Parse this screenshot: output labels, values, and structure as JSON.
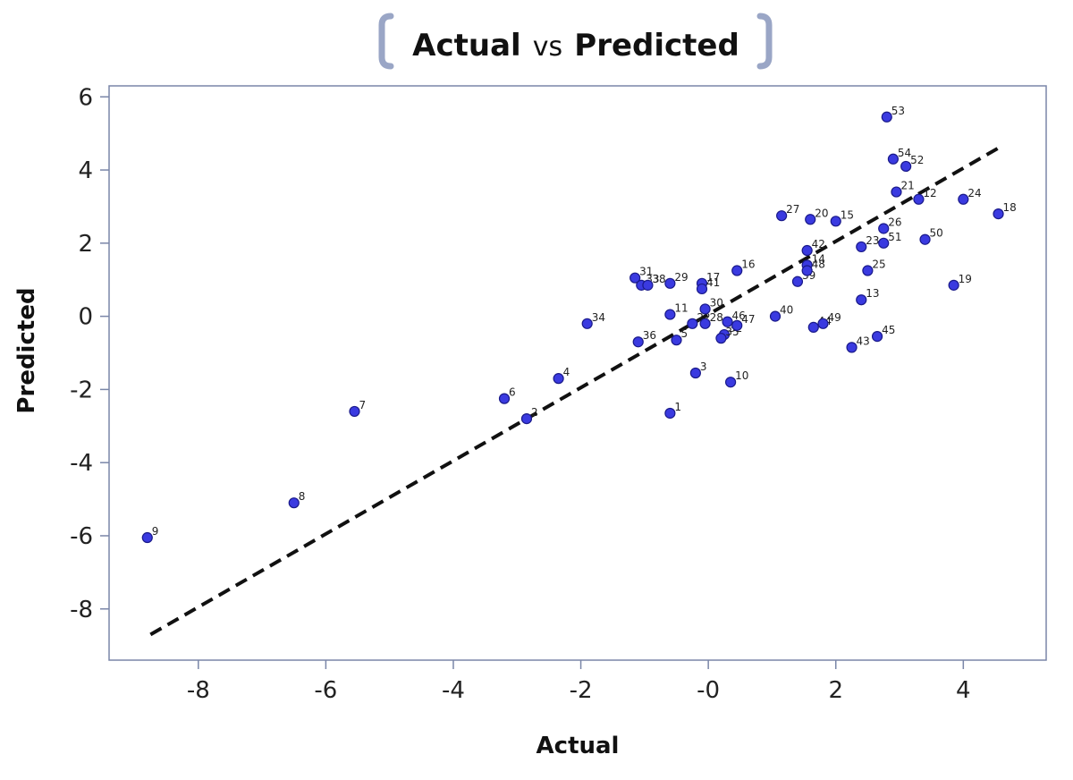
{
  "title": {
    "part1": "Actual",
    "part2": "vs",
    "part3": "Predicted",
    "bracket_color": "#9aa6c6"
  },
  "chart_data": {
    "type": "scatter",
    "xlabel": "Actual",
    "ylabel": "Predicted",
    "xlim": [
      -9.4,
      5.3
    ],
    "ylim": [
      -9.4,
      6.3
    ],
    "xticks": [
      -8,
      -6,
      -4,
      -2,
      0,
      2,
      4
    ],
    "xtick_labels": [
      "-8",
      "-6",
      "-4",
      "-2",
      "-0",
      "2",
      "4"
    ],
    "yticks": [
      -8,
      -6,
      -4,
      -2,
      0,
      2,
      4,
      6
    ],
    "ytick_labels": [
      "-8",
      "-6",
      "-4",
      "-2",
      "0",
      "2",
      "4",
      "6"
    ],
    "grid": false,
    "point_color": "#3a3ae0",
    "frame_color": "#7a86a8",
    "fit_line": {
      "x": [
        -8.75,
        4.55
      ],
      "y": [
        -8.7,
        4.6
      ],
      "style": "dashed",
      "color": "#111111"
    },
    "points": [
      {
        "label": "1",
        "x": -0.6,
        "y": -2.65
      },
      {
        "label": "2",
        "x": -2.85,
        "y": -2.8
      },
      {
        "label": "3",
        "x": -0.2,
        "y": -1.55
      },
      {
        "label": "4",
        "x": -2.35,
        "y": -1.7
      },
      {
        "label": "5",
        "x": -0.5,
        "y": -0.65
      },
      {
        "label": "6",
        "x": -3.2,
        "y": -2.25
      },
      {
        "label": "7",
        "x": -5.55,
        "y": -2.6
      },
      {
        "label": "8",
        "x": -6.5,
        "y": -5.1
      },
      {
        "label": "9",
        "x": -8.8,
        "y": -6.05
      },
      {
        "label": "10",
        "x": 0.35,
        "y": -1.8
      },
      {
        "label": "11",
        "x": -0.6,
        "y": 0.05
      },
      {
        "label": "12",
        "x": 3.3,
        "y": 3.2
      },
      {
        "label": "13",
        "x": 2.4,
        "y": 0.45
      },
      {
        "label": "14",
        "x": 1.55,
        "y": 1.4
      },
      {
        "label": "15",
        "x": 2.0,
        "y": 2.6
      },
      {
        "label": "16",
        "x": 0.45,
        "y": 1.25
      },
      {
        "label": "17",
        "x": -0.1,
        "y": 0.9
      },
      {
        "label": "18",
        "x": 4.55,
        "y": 2.8
      },
      {
        "label": "19",
        "x": 3.85,
        "y": 0.85
      },
      {
        "label": "20",
        "x": 1.6,
        "y": 2.65
      },
      {
        "label": "21",
        "x": 2.95,
        "y": 3.4
      },
      {
        "label": "22",
        "x": -0.25,
        "y": -0.2
      },
      {
        "label": "23",
        "x": 2.4,
        "y": 1.9
      },
      {
        "label": "24",
        "x": 4.0,
        "y": 3.2
      },
      {
        "label": "25",
        "x": 2.5,
        "y": 1.25
      },
      {
        "label": "26",
        "x": 2.75,
        "y": 2.4
      },
      {
        "label": "27",
        "x": 1.15,
        "y": 2.75
      },
      {
        "label": "28",
        "x": -0.05,
        "y": -0.2
      },
      {
        "label": "29",
        "x": -0.6,
        "y": 0.9
      },
      {
        "label": "30",
        "x": -0.05,
        "y": 0.2
      },
      {
        "label": "31",
        "x": -1.15,
        "y": 1.05
      },
      {
        "label": "32",
        "x": 0.25,
        "y": -0.5
      },
      {
        "label": "33",
        "x": -1.05,
        "y": 0.85
      },
      {
        "label": "34",
        "x": -1.9,
        "y": -0.2
      },
      {
        "label": "35",
        "x": 0.2,
        "y": -0.6
      },
      {
        "label": "36",
        "x": -1.1,
        "y": -0.7
      },
      {
        "label": "38",
        "x": -0.95,
        "y": 0.85
      },
      {
        "label": "39",
        "x": 1.4,
        "y": 0.95
      },
      {
        "label": "40",
        "x": 1.05,
        "y": 0.0
      },
      {
        "label": "41",
        "x": -0.1,
        "y": 0.75
      },
      {
        "label": "42",
        "x": 1.55,
        "y": 1.8
      },
      {
        "label": "43",
        "x": 2.25,
        "y": -0.85
      },
      {
        "label": "44",
        "x": 1.65,
        "y": -0.3
      },
      {
        "label": "45",
        "x": 2.65,
        "y": -0.55
      },
      {
        "label": "46",
        "x": 0.3,
        "y": -0.15
      },
      {
        "label": "47",
        "x": 0.45,
        "y": -0.25
      },
      {
        "label": "48",
        "x": 1.55,
        "y": 1.25
      },
      {
        "label": "49",
        "x": 1.8,
        "y": -0.2
      },
      {
        "label": "50",
        "x": 3.4,
        "y": 2.1
      },
      {
        "label": "51",
        "x": 2.75,
        "y": 2.0
      },
      {
        "label": "52",
        "x": 3.1,
        "y": 4.1
      },
      {
        "label": "53",
        "x": 2.8,
        "y": 5.45
      },
      {
        "label": "54",
        "x": 2.9,
        "y": 4.3
      }
    ]
  }
}
